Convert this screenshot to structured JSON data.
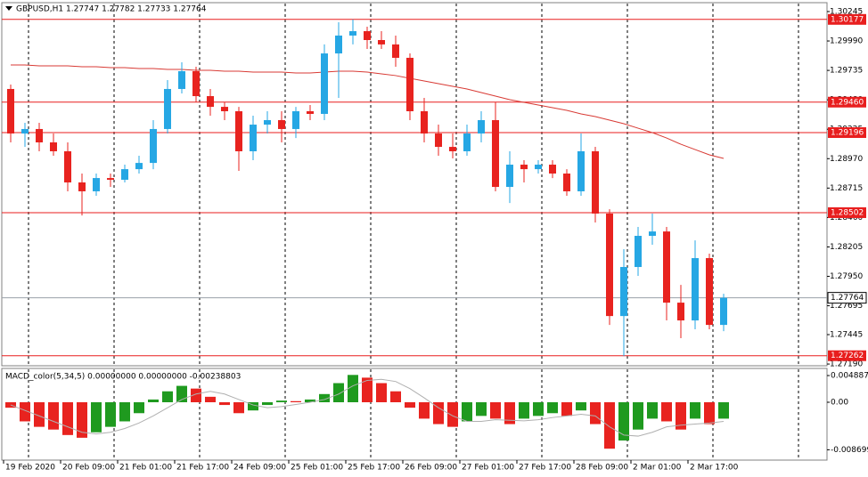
{
  "chart_data": [
    {
      "type": "candlestick",
      "title": "GBPUSD,H1 1.27747 1.27782 1.27733 1.27764",
      "categories": [
        "19 Feb 2020",
        null,
        null,
        null,
        "20 Feb 09:00",
        null,
        null,
        null,
        "21 Feb 01:00",
        null,
        null,
        null,
        "21 Feb 17:00",
        null,
        null,
        null,
        "24 Feb 09:00",
        null,
        null,
        null,
        "25 Feb 01:00",
        null,
        null,
        null,
        "25 Feb 17:00",
        null,
        null,
        null,
        "26 Feb 09:00",
        null,
        null,
        null,
        "27 Feb 01:00",
        null,
        null,
        null,
        "27 Feb 17:00",
        null,
        null,
        null,
        "28 Feb 09:00",
        null,
        null,
        null,
        "2 Mar 01:00",
        null,
        null,
        null,
        "2 Mar 17:00",
        null,
        null
      ],
      "ohlc": [
        [
          1.29574,
          1.29612,
          1.29111,
          1.29188
        ],
        [
          1.29188,
          1.29281,
          1.29072,
          1.29227
        ],
        [
          1.29227,
          1.29281,
          1.29034,
          1.29111
        ],
        [
          1.29111,
          1.29188,
          1.28995,
          1.29034
        ],
        [
          1.29034,
          1.29111,
          1.28687,
          1.28764
        ],
        [
          1.28764,
          1.28841,
          1.28478,
          1.28687
        ],
        [
          1.28687,
          1.28841,
          1.28648,
          1.28802
        ],
        [
          1.28802,
          1.28841,
          1.28725,
          1.28787
        ],
        [
          1.28787,
          1.28918,
          1.28764,
          1.28879
        ],
        [
          1.28879,
          1.28995,
          1.28841,
          1.28933
        ],
        [
          1.28933,
          1.29304,
          1.28879,
          1.29227
        ],
        [
          1.29227,
          1.29651,
          1.29188,
          1.29574
        ],
        [
          1.29574,
          1.29805,
          1.29535,
          1.29728
        ],
        [
          1.29728,
          1.29767,
          1.29458,
          1.29512
        ],
        [
          1.29512,
          1.29574,
          1.29342,
          1.29419
        ],
        [
          1.29419,
          1.29458,
          1.29304,
          1.29381
        ],
        [
          1.29381,
          1.29419,
          1.28864,
          1.29034
        ],
        [
          1.29034,
          1.29342,
          1.28957,
          1.29265
        ],
        [
          1.29265,
          1.29381,
          1.29188,
          1.29304
        ],
        [
          1.29304,
          1.29381,
          1.29111,
          1.29227
        ],
        [
          1.29227,
          1.29419,
          1.29149,
          1.29381
        ],
        [
          1.29381,
          1.29435,
          1.29304,
          1.29358
        ],
        [
          1.29358,
          1.2996,
          1.29304,
          1.29882
        ],
        [
          1.29882,
          1.30152,
          1.29497,
          1.30037
        ],
        [
          1.30037,
          1.30176,
          1.2996,
          1.30075
        ],
        [
          1.30075,
          1.30114,
          1.29921,
          1.29998
        ],
        [
          1.29998,
          1.30075,
          1.29921,
          1.2996
        ],
        [
          1.2996,
          1.30037,
          1.29767,
          1.29844
        ],
        [
          1.29844,
          1.29882,
          1.29304,
          1.29381
        ],
        [
          1.29381,
          1.29497,
          1.29111,
          1.29188
        ],
        [
          1.29188,
          1.29265,
          1.28995,
          1.29072
        ],
        [
          1.29072,
          1.29188,
          1.28972,
          1.29034
        ],
        [
          1.29034,
          1.29265,
          1.28995,
          1.29188
        ],
        [
          1.29188,
          1.29381,
          1.29111,
          1.29304
        ],
        [
          1.29304,
          1.29458,
          1.28687,
          1.28725
        ],
        [
          1.28725,
          1.29034,
          1.28586,
          1.28918
        ],
        [
          1.28918,
          1.28957,
          1.28764,
          1.28879
        ],
        [
          1.28879,
          1.28957,
          1.28841,
          1.28918
        ],
        [
          1.28918,
          1.28957,
          1.28802,
          1.28841
        ],
        [
          1.28841,
          1.28879,
          1.28648,
          1.28687
        ],
        [
          1.28687,
          1.29188,
          1.28648,
          1.29034
        ],
        [
          1.29034,
          1.29072,
          1.28417,
          1.28494
        ],
        [
          1.28494,
          1.28532,
          1.27529,
          1.27606
        ],
        [
          1.27606,
          1.28185,
          1.27259,
          1.28031
        ],
        [
          1.28031,
          1.28378,
          1.27954,
          1.28301
        ],
        [
          1.28301,
          1.28494,
          1.28224,
          1.28339
        ],
        [
          1.28339,
          1.28378,
          1.27568,
          1.27722
        ],
        [
          1.27722,
          1.27876,
          1.27414,
          1.27568
        ],
        [
          1.27568,
          1.28262,
          1.27491,
          1.28108
        ],
        [
          1.28108,
          1.28147,
          1.27491,
          1.27529
        ],
        [
          1.27529,
          1.27799,
          1.27475,
          1.27764
        ]
      ],
      "ma": [
        1.29782,
        1.29782,
        1.29774,
        1.29774,
        1.29774,
        1.29767,
        1.29767,
        1.29759,
        1.29759,
        1.29751,
        1.29751,
        1.29744,
        1.29744,
        1.29736,
        1.29736,
        1.29728,
        1.29728,
        1.2972,
        1.2972,
        1.2972,
        1.29713,
        1.29713,
        1.2972,
        1.29728,
        1.29728,
        1.2972,
        1.29705,
        1.2969,
        1.29666,
        1.29643,
        1.2962,
        1.29597,
        1.29574,
        1.29543,
        1.29512,
        1.29481,
        1.29458,
        1.29435,
        1.29412,
        1.29389,
        1.29358,
        1.29335,
        1.29304,
        1.29273,
        1.29234,
        1.29196,
        1.29149,
        1.29095,
        1.29049,
        1.29003,
        1.28972
      ],
      "up_color": "#26a7e4",
      "down_color": "#e8231f",
      "ma_color": "#d83a34",
      "level_color": "#e81e1e",
      "ylim": [
        1.27175,
        1.30322
      ],
      "yticks": [
        1.30245,
        {
          "value": 1.2999,
          "label": "1.29990"
        },
        1.29735,
        {
          "value": 1.2948,
          "label": "1.29480"
        },
        1.29225,
        {
          "value": 1.2897,
          "label": "1.28970"
        },
        1.28715,
        {
          "value": 1.2846,
          "label": "1.28460"
        },
        1.28205,
        {
          "value": 1.2795,
          "label": "1.27950"
        },
        1.27695,
        1.27445,
        {
          "value": 1.2719,
          "label": "1.27190"
        }
      ],
      "levels": [
        1.30177,
        {
          "value": 1.2946,
          "label": "1.29460"
        },
        1.29196,
        1.28502,
        1.27262
      ],
      "last_price": 1.27764
    },
    {
      "type": "macd",
      "title": "MACD_color(5,34,5) 0.00000000 0.00000000 -0.00238803",
      "values": [
        -0.001,
        -0.0035,
        -0.0045,
        -0.005,
        -0.006,
        -0.0065,
        -0.0055,
        -0.0045,
        -0.0035,
        -0.002,
        0.0005,
        0.002,
        0.003,
        0.0025,
        0.001,
        -0.0005,
        -0.002,
        -0.0015,
        -0.0005,
        0.0003,
        0.0002,
        0.0005,
        0.0015,
        0.0035,
        0.005,
        0.0045,
        0.0035,
        0.002,
        -0.001,
        -0.003,
        -0.004,
        -0.0045,
        -0.0035,
        -0.0025,
        -0.003,
        -0.004,
        -0.003,
        -0.0025,
        -0.002,
        -0.0025,
        -0.0015,
        -0.004,
        -0.0085,
        -0.007,
        -0.005,
        -0.003,
        -0.0035,
        -0.005,
        -0.003,
        -0.004,
        -0.003
      ],
      "colors": [
        "#e8231f",
        "#e8231f",
        "#e8231f",
        "#e8231f",
        "#e8231f",
        "#e8231f",
        "#1f9a1f",
        "#1f9a1f",
        "#1f9a1f",
        "#1f9a1f",
        "#1f9a1f",
        "#1f9a1f",
        "#1f9a1f",
        "#e8231f",
        "#e8231f",
        "#e8231f",
        "#e8231f",
        "#1f9a1f",
        "#1f9a1f",
        "#1f9a1f",
        "#e8231f",
        "#1f9a1f",
        "#1f9a1f",
        "#1f9a1f",
        "#1f9a1f",
        "#e8231f",
        "#e8231f",
        "#e8231f",
        "#e8231f",
        "#e8231f",
        "#e8231f",
        "#e8231f",
        "#1f9a1f",
        "#1f9a1f",
        "#e8231f",
        "#e8231f",
        "#1f9a1f",
        "#1f9a1f",
        "#1f9a1f",
        "#e8231f",
        "#1f9a1f",
        "#e8231f",
        "#e8231f",
        "#1f9a1f",
        "#1f9a1f",
        "#1f9a1f",
        "#e8231f",
        "#e8231f",
        "#1f9a1f",
        "#e8231f",
        "#1f9a1f"
      ],
      "signal": [
        -0.0005,
        -0.0015,
        -0.0025,
        -0.0035,
        -0.0045,
        -0.0055,
        -0.0058,
        -0.0055,
        -0.0048,
        -0.0038,
        -0.0025,
        -0.001,
        0.0005,
        0.0015,
        0.002,
        0.0015,
        0.0005,
        -0.0005,
        -0.001,
        -0.0008,
        -0.0004,
        0,
        0.0005,
        0.0015,
        0.003,
        0.004,
        0.0042,
        0.0038,
        0.0025,
        0.0008,
        -0.001,
        -0.0025,
        -0.0035,
        -0.0035,
        -0.0032,
        -0.0033,
        -0.0034,
        -0.0032,
        -0.0028,
        -0.0025,
        -0.0022,
        -0.0025,
        -0.0045,
        -0.006,
        -0.0062,
        -0.0055,
        -0.0045,
        -0.0042,
        -0.004,
        -0.0038,
        -0.0035
      ],
      "signal_color": "#b0b0b0",
      "ylim": [
        -0.010588,
        0.00619
      ],
      "yticks": [
        0.0048871,
        {
          "value": 0,
          "label": "0.00"
        },
        -0.0086993
      ]
    }
  ]
}
